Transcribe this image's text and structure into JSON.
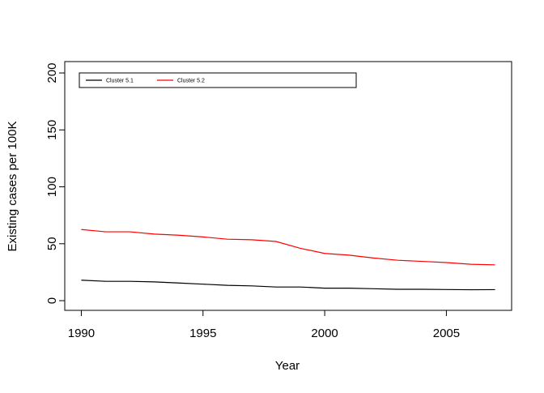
{
  "chart_data": {
    "type": "line",
    "x": [
      1990,
      1991,
      1992,
      1993,
      1994,
      1995,
      1996,
      1997,
      1998,
      1999,
      2000,
      2001,
      2002,
      2003,
      2004,
      2005,
      2006,
      2007
    ],
    "series": [
      {
        "name": "Cluster 5.1",
        "color": "#000000",
        "values": [
          18,
          17,
          17,
          16.5,
          15.5,
          14.5,
          13.5,
          13,
          12,
          12,
          11,
          11,
          10.5,
          10,
          10,
          9.8,
          9.6,
          9.7
        ]
      },
      {
        "name": "Cluster 5.2",
        "color": "#ff0000",
        "values": [
          62.5,
          60.5,
          60.5,
          58.5,
          57.5,
          56,
          54,
          53.5,
          52,
          46,
          41.5,
          40,
          37.5,
          35.5,
          34.5,
          33.5,
          32,
          31.5
        ]
      }
    ],
    "xlabel": "Year",
    "ylabel": "Existing cases per 100K",
    "xlim": [
      1989.32,
      2007.68
    ],
    "ylim": [
      -8.5,
      210
    ],
    "xticks": [
      1990,
      1995,
      2000,
      2005
    ],
    "yticks": [
      0,
      50,
      100,
      150,
      200
    ],
    "legend": "top-left",
    "legend_layout": "horizontal"
  }
}
